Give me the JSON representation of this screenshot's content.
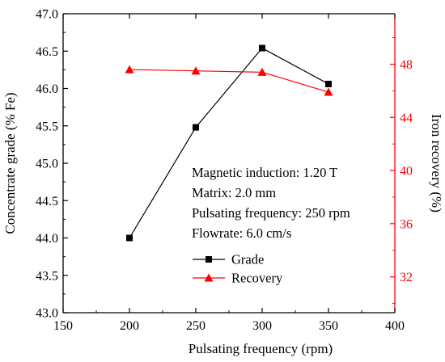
{
  "chart_data": {
    "type": "line",
    "xlabel": "Pulsating frequency (rpm)",
    "ylabel_left": "Concentrate grade (% Fe)",
    "ylabel_right": "Iron recovery (%)",
    "x": [
      200,
      250,
      300,
      350
    ],
    "xlim": [
      150,
      400
    ],
    "x_ticks": [
      "150",
      "200",
      "250",
      "300",
      "350",
      "400"
    ],
    "ylim_left": [
      43.0,
      47.0
    ],
    "y_ticks_left": [
      "43.0",
      "43.5",
      "44.0",
      "44.5",
      "45.0",
      "45.5",
      "46.0",
      "46.5",
      "47.0"
    ],
    "ylim_right": [
      29.3,
      51.8
    ],
    "y_ticks_right": [
      "32",
      "36",
      "40",
      "44",
      "48"
    ],
    "series": [
      {
        "name": "Grade",
        "axis": "left",
        "color": "#000000",
        "marker": "square",
        "values": [
          44.0,
          45.48,
          46.54,
          46.06
        ]
      },
      {
        "name": "Recovery",
        "axis": "right",
        "color": "#ff0000",
        "marker": "triangle",
        "values": [
          47.6,
          47.5,
          47.4,
          45.9
        ]
      }
    ],
    "annotations": [
      "Magnetic induction: 1.20 T",
      "Matrix: 2.0 mm",
      "Pulsating frequency: 250 rpm",
      "Flowrate: 6.0 cm/s"
    ],
    "legend_position": "lower-right",
    "grid": false
  }
}
